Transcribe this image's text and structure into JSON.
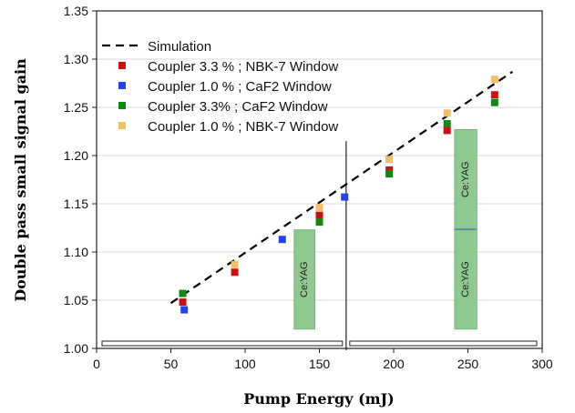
{
  "chart_data": {
    "type": "scatter",
    "title": "",
    "xlabel": "Pump Energy (mJ)",
    "ylabel": "Double pass small signal gain",
    "xlim": [
      0,
      300
    ],
    "ylim": [
      1.0,
      1.35
    ],
    "xticks": [
      0,
      50,
      100,
      150,
      200,
      250,
      300
    ],
    "yticks": [
      1.0,
      1.05,
      1.1,
      1.15,
      1.2,
      1.25,
      1.3,
      1.35
    ],
    "xtick_labels": [
      "0",
      "50",
      "100",
      "150",
      "200",
      "250",
      "300"
    ],
    "ytick_labels": [
      "1.00",
      "1.05",
      "1.10",
      "1.15",
      "1.20",
      "1.25",
      "1.30",
      "1.35"
    ],
    "grid": "horizontal",
    "legend_position": "top-left",
    "simulation": {
      "name": "Simulation",
      "style": "dashed",
      "color": "#000000",
      "x": [
        50,
        280
      ],
      "y": [
        1.047,
        1.287
      ]
    },
    "series": [
      {
        "name": "Coupler 3.3 % ; NBK-7 Window",
        "color": "#cc1111",
        "x": [
          58,
          93,
          150,
          197,
          236,
          268
        ],
        "y": [
          1.048,
          1.079,
          1.138,
          1.185,
          1.226,
          1.263
        ]
      },
      {
        "name": "Coupler 1.0 % ; CaF2 Window",
        "color": "#2244ee",
        "x": [
          59,
          125,
          167
        ],
        "y": [
          1.04,
          1.113,
          1.157
        ]
      },
      {
        "name": "Coupler 3.3% ; CaF2 Window",
        "color": "#118811",
        "x": [
          58,
          150,
          197,
          236,
          268
        ],
        "y": [
          1.057,
          1.131,
          1.181,
          1.233,
          1.255
        ]
      },
      {
        "name": "Coupler 1.0 % ; NBK-7 Window",
        "color": "#f2be68",
        "x": [
          93,
          150,
          197,
          236,
          268
        ],
        "y": [
          1.087,
          1.146,
          1.196,
          1.244,
          1.279
        ]
      }
    ],
    "annotations": {
      "crystal_label": "Ce:YAG",
      "crystal_color": "#8fc98f",
      "crystals": [
        {
          "x_from": 133,
          "x_to": 147,
          "y_from": 1.02,
          "y_to": 1.123,
          "labels": 1
        },
        {
          "x_from": 241,
          "x_to": 256,
          "y_from": 1.02,
          "y_to": 1.227,
          "labels": 2
        }
      ],
      "vertical_line_x": 168,
      "vertical_line_top": 1.215
    }
  }
}
